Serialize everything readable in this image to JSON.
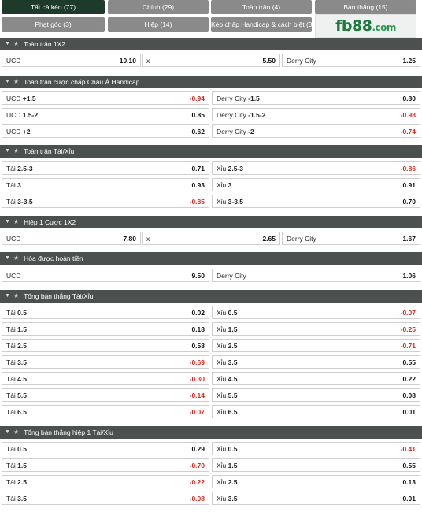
{
  "tabs": [
    {
      "label": "Tất cả kèo (77)",
      "active": true
    },
    {
      "label": "Chính (29)",
      "active": false
    },
    {
      "label": "Toàn trận (4)",
      "active": false
    },
    {
      "label": "Bàn thắng (15)",
      "active": false
    },
    {
      "label": "Phạt góc (3)",
      "active": false
    },
    {
      "label": "Hiệp (14)",
      "active": false
    },
    {
      "label": "Kèo chấp Handicap & cách biệt (3)",
      "active": false
    }
  ],
  "logo": {
    "text": "fb88",
    "domain": ".com"
  },
  "colors": {
    "header": "#4c504e",
    "active_tab": "#1e3a2a",
    "tab": "#8a8a8a",
    "negative": "#e2231a",
    "brand": "#1d7a3f"
  },
  "icons": {
    "collapse": "caret-down-icon",
    "favorite": "star-icon"
  },
  "sections": [
    {
      "title": "Toàn trận 1X2",
      "rows": [
        [
          {
            "label": "UCD",
            "value": "10.10"
          },
          {
            "label": "x",
            "value": "5.50"
          },
          {
            "label": "Derry City",
            "value": "1.25"
          }
        ]
      ]
    },
    {
      "title": "Toàn trận cược chấp Châu Á Handicap",
      "rows": [
        [
          {
            "label": "UCD",
            "line": "+1.5",
            "value": "-0.94"
          },
          {
            "label": "Derry City",
            "line": "-1.5",
            "value": "0.80"
          }
        ],
        [
          {
            "label": "UCD",
            "line": "1.5-2",
            "value": "0.85"
          },
          {
            "label": "Derry City",
            "line": "-1.5-2",
            "value": "-0.98"
          }
        ],
        [
          {
            "label": "UCD",
            "line": "+2",
            "value": "0.62"
          },
          {
            "label": "Derry City",
            "line": "-2",
            "value": "-0.74"
          }
        ]
      ]
    },
    {
      "title": "Toàn trận Tài/Xỉu",
      "rows": [
        [
          {
            "label": "Tài",
            "line": "2.5-3",
            "value": "0.71"
          },
          {
            "label": "Xỉu",
            "line": "2.5-3",
            "value": "-0.86"
          }
        ],
        [
          {
            "label": "Tài",
            "line": "3",
            "value": "0.93"
          },
          {
            "label": "Xỉu",
            "line": "3",
            "value": "0.91"
          }
        ],
        [
          {
            "label": "Tài",
            "line": "3-3.5",
            "value": "-0.85"
          },
          {
            "label": "Xỉu",
            "line": "3-3.5",
            "value": "0.70"
          }
        ]
      ]
    },
    {
      "title": "Hiệp 1 Cược 1X2",
      "rows": [
        [
          {
            "label": "UCD",
            "value": "7.80"
          },
          {
            "label": "x",
            "value": "2.65"
          },
          {
            "label": "Derry City",
            "value": "1.67"
          }
        ]
      ]
    },
    {
      "title": "Hòa được hoàn tiền",
      "rows": [
        [
          {
            "label": "UCD",
            "value": "9.50"
          },
          {
            "label": "Derry City",
            "value": "1.06"
          }
        ]
      ]
    },
    {
      "title": "Tổng bàn thắng Tài/Xỉu",
      "rows": [
        [
          {
            "label": "Tài",
            "line": "0.5",
            "value": "0.02"
          },
          {
            "label": "Xỉu",
            "line": "0.5",
            "value": "-0.07"
          }
        ],
        [
          {
            "label": "Tài",
            "line": "1.5",
            "value": "0.18"
          },
          {
            "label": "Xỉu",
            "line": "1.5",
            "value": "-0.25"
          }
        ],
        [
          {
            "label": "Tài",
            "line": "2.5",
            "value": "0.58"
          },
          {
            "label": "Xỉu",
            "line": "2.5",
            "value": "-0.71"
          }
        ],
        [
          {
            "label": "Tài",
            "line": "3.5",
            "value": "-0.69"
          },
          {
            "label": "Xỉu",
            "line": "3.5",
            "value": "0.55"
          }
        ],
        [
          {
            "label": "Tài",
            "line": "4.5",
            "value": "-0.30"
          },
          {
            "label": "Xỉu",
            "line": "4.5",
            "value": "0.22"
          }
        ],
        [
          {
            "label": "Tài",
            "line": "5.5",
            "value": "-0.14"
          },
          {
            "label": "Xỉu",
            "line": "5.5",
            "value": "0.08"
          }
        ],
        [
          {
            "label": "Tài",
            "line": "6.5",
            "value": "-0.07"
          },
          {
            "label": "Xỉu",
            "line": "6.5",
            "value": "0.01"
          }
        ]
      ]
    },
    {
      "title": "Tổng bàn thắng hiệp 1 Tài/Xỉu",
      "rows": [
        [
          {
            "label": "Tài",
            "line": "0.5",
            "value": "0.29"
          },
          {
            "label": "Xỉu",
            "line": "0.5",
            "value": "-0.41"
          }
        ],
        [
          {
            "label": "Tài",
            "line": "1.5",
            "value": "-0.70"
          },
          {
            "label": "Xỉu",
            "line": "1.5",
            "value": "0.55"
          }
        ],
        [
          {
            "label": "Tài",
            "line": "2.5",
            "value": "-0.22"
          },
          {
            "label": "Xỉu",
            "line": "2.5",
            "value": "0.13"
          }
        ],
        [
          {
            "label": "Tài",
            "line": "3.5",
            "value": "-0.08"
          },
          {
            "label": "Xỉu",
            "line": "3.5",
            "value": "0.01"
          }
        ]
      ]
    }
  ]
}
